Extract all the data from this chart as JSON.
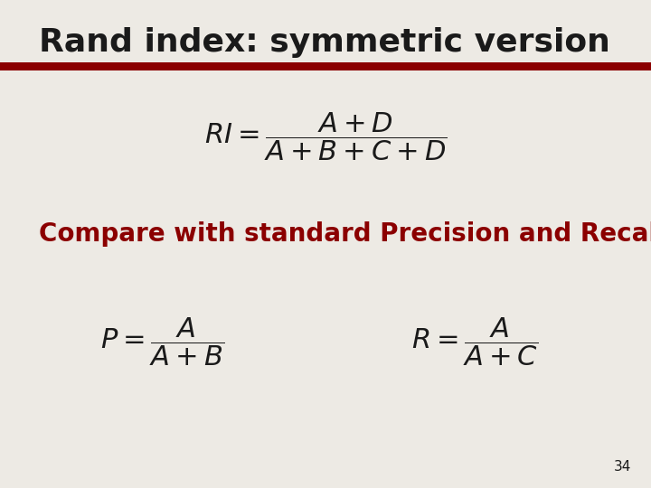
{
  "title": "Rand index: symmetric version",
  "title_fontsize": 26,
  "title_color": "#1a1a1a",
  "bg_color": "#edeae4",
  "red_bar_color": "#8b0000",
  "compare_text": "Compare with standard Precision and Recall.",
  "compare_color": "#8b0000",
  "compare_fontsize": 20,
  "formula_color": "#1a1a1a",
  "formula_fontsize": 22,
  "page_number": "34",
  "page_number_fontsize": 11,
  "page_number_color": "#1a1a1a"
}
